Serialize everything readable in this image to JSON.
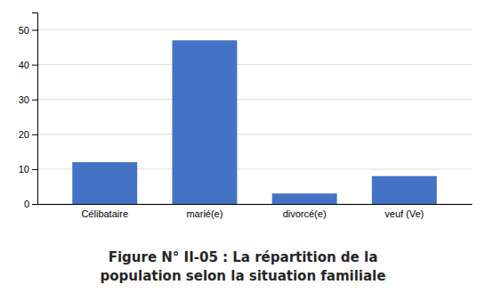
{
  "chart_data": {
    "type": "bar",
    "title": "Figure N° II-05 : La répartition de la\npopulation selon la situation familiale",
    "categories": [
      "Célibataire",
      "marié(e)",
      "divorcé(e)",
      "veuf (Ve)"
    ],
    "values": [
      12,
      47,
      3,
      8
    ],
    "color": "#4472C4",
    "ylim": [
      0,
      55
    ],
    "yticks": [
      0,
      10,
      20,
      30,
      40,
      50
    ],
    "grid": true
  }
}
